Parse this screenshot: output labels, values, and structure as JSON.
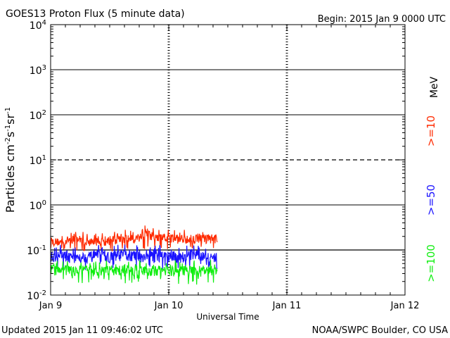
{
  "header": {
    "title": "GOES13 Proton Flux (5 minute data)",
    "begin": "Begin: 2015 Jan 9 0000 UTC"
  },
  "footer": {
    "updated": "Updated 2015 Jan 11 09:46:02 UTC",
    "credit": "NOAA/SWPC Boulder, CO USA"
  },
  "chart_data": {
    "type": "line",
    "title": "GOES13 Proton Flux (5 minute data)",
    "xlabel": "Universal Time",
    "ylabel": "Particles cm-2s-1sr-1",
    "yscale": "log",
    "ylim": [
      0.01,
      10000
    ],
    "xlim": [
      0,
      3
    ],
    "x_unit": "days since 2015 Jan 9 0000 UTC",
    "x_ticks": [
      {
        "value": 0,
        "label": "Jan 9"
      },
      {
        "value": 1,
        "label": "Jan 10"
      },
      {
        "value": 2,
        "label": "Jan 11"
      },
      {
        "value": 3,
        "label": "Jan 12"
      }
    ],
    "y_ticks": [
      {
        "value": 0.01,
        "base": "10",
        "exp": "-2"
      },
      {
        "value": 0.1,
        "base": "10",
        "exp": "-1"
      },
      {
        "value": 1,
        "base": "10",
        "exp": "0"
      },
      {
        "value": 10,
        "base": "10",
        "exp": "1"
      },
      {
        "value": 100,
        "base": "10",
        "exp": "2"
      },
      {
        "value": 1000,
        "base": "10",
        "exp": "3"
      },
      {
        "value": 10000,
        "base": "10",
        "exp": "4"
      }
    ],
    "threshold_lines": [
      {
        "value": 10,
        "style": "dashed"
      },
      {
        "value": 0.1,
        "style": "solid"
      }
    ],
    "grid": true,
    "legend_placement": "right",
    "legend_unit": "MeV",
    "series": [
      {
        "name": ">=10",
        "color": "#ff2a00",
        "x": [
          0,
          0.1,
          0.2,
          0.3,
          0.4,
          0.5,
          0.6,
          0.7,
          0.8,
          0.9,
          1.0,
          1.1,
          1.2,
          1.3,
          1.4,
          1.41
        ],
        "values": [
          0.13,
          0.14,
          0.14,
          0.13,
          0.14,
          0.13,
          0.14,
          0.14,
          0.14,
          0.15,
          0.14,
          0.14,
          0.14,
          0.14,
          0.14,
          0.14
        ],
        "min": [
          0.09,
          0.1,
          0.1,
          0.09,
          0.1,
          0.09,
          0.1,
          0.1,
          0.1,
          0.1,
          0.1,
          0.1,
          0.1,
          0.1,
          0.1,
          0.1
        ],
        "max": [
          0.24,
          0.22,
          0.3,
          0.24,
          0.23,
          0.25,
          0.3,
          0.28,
          0.38,
          0.3,
          0.3,
          0.28,
          0.3,
          0.29,
          0.3,
          0.25
        ]
      },
      {
        "name": ">=50",
        "color": "#1a12ff",
        "x": [
          0,
          0.1,
          0.2,
          0.3,
          0.4,
          0.5,
          0.6,
          0.7,
          0.8,
          0.9,
          1.0,
          1.1,
          1.2,
          1.3,
          1.4,
          1.41
        ],
        "values": [
          0.065,
          0.07,
          0.07,
          0.065,
          0.07,
          0.065,
          0.07,
          0.07,
          0.065,
          0.07,
          0.07,
          0.065,
          0.07,
          0.065,
          0.065,
          0.065
        ],
        "min": [
          0.035,
          0.035,
          0.035,
          0.035,
          0.035,
          0.035,
          0.035,
          0.035,
          0.035,
          0.035,
          0.035,
          0.035,
          0.035,
          0.035,
          0.035,
          0.035
        ],
        "max": [
          0.12,
          0.14,
          0.12,
          0.12,
          0.13,
          0.12,
          0.14,
          0.13,
          0.12,
          0.13,
          0.13,
          0.12,
          0.13,
          0.12,
          0.12,
          0.12
        ]
      },
      {
        "name": ">=100",
        "color": "#10ee10",
        "x": [
          0,
          0.1,
          0.2,
          0.3,
          0.4,
          0.5,
          0.6,
          0.7,
          0.8,
          0.9,
          1.0,
          1.1,
          1.2,
          1.3,
          1.4,
          1.41
        ],
        "values": [
          0.03,
          0.03,
          0.03,
          0.03,
          0.03,
          0.03,
          0.03,
          0.03,
          0.03,
          0.03,
          0.03,
          0.03,
          0.03,
          0.03,
          0.03,
          0.03
        ],
        "min": [
          0.017,
          0.017,
          0.017,
          0.017,
          0.017,
          0.017,
          0.017,
          0.017,
          0.017,
          0.017,
          0.017,
          0.017,
          0.017,
          0.017,
          0.017,
          0.017
        ],
        "max": [
          0.06,
          0.07,
          0.06,
          0.06,
          0.06,
          0.06,
          0.06,
          0.06,
          0.06,
          0.06,
          0.06,
          0.06,
          0.06,
          0.06,
          0.06,
          0.06
        ]
      }
    ]
  }
}
